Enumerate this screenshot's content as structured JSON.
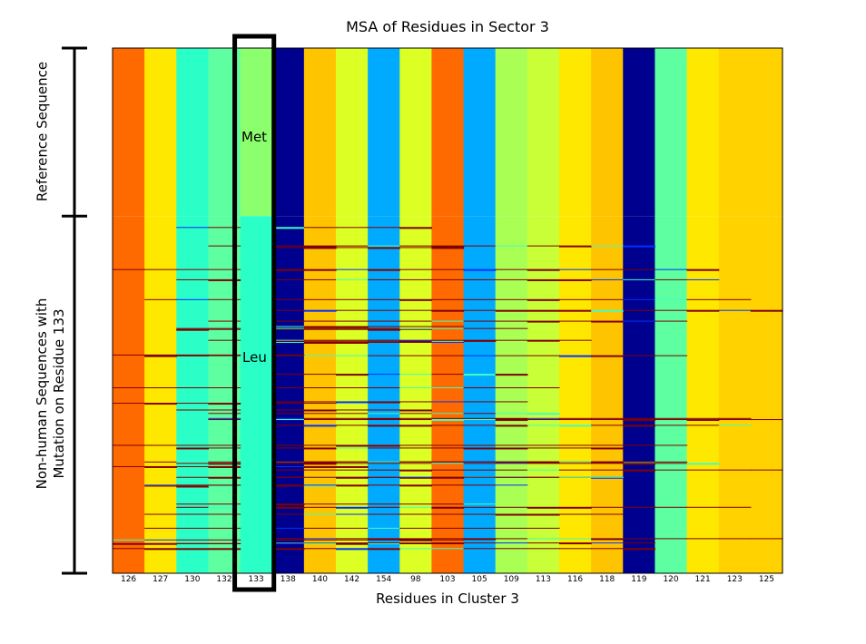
{
  "chart_data": {
    "type": "heatmap",
    "title": "MSA of Residues in Sector 3",
    "xlabel": "Residues in Cluster 3",
    "ylabel_groups": [
      {
        "label": "Reference Sequence",
        "rows_fraction": [
          0,
          0.32
        ]
      },
      {
        "label": "Non-human Sequences with Mutation on Residue 133",
        "label_lines": [
          "Non-human Sequences with",
          "Mutation on Residue 133"
        ],
        "rows_fraction": [
          0.32,
          1.0
        ]
      }
    ],
    "columns": [
      "126",
      "127",
      "130",
      "132",
      "133",
      "138",
      "140",
      "142",
      "154",
      "98",
      "103",
      "105",
      "109",
      "113",
      "116",
      "118",
      "119",
      "120",
      "121",
      "123",
      "125"
    ],
    "reference_colors": [
      "#FF6A00",
      "#FFE800",
      "#2BFFC8",
      "#5DFFA0",
      "#8CFF6F",
      "#00008F",
      "#FFC400",
      "#DCFF24",
      "#00AAFF",
      "#DCFF24",
      "#FF6A00",
      "#00AAFF",
      "#AAFF55",
      "#C8FF37",
      "#FFE800",
      "#FFC400",
      "#00008F",
      "#5DFFA0",
      "#FFE800",
      "#FFD200",
      "#FFD200"
    ],
    "lower_colors": [
      "#FF6A00",
      "#FFE800",
      "#2BFFC8",
      "#5DFFA0",
      "#2BFFC8",
      "#00008F",
      "#FFC400",
      "#DCFF24",
      "#00AAFF",
      "#DCFF24",
      "#FF6A00",
      "#00AAFF",
      "#AAFF55",
      "#C8FF37",
      "#FFE800",
      "#FFC400",
      "#00008F",
      "#5DFFA0",
      "#FFE800",
      "#FFD200",
      "#FFD200"
    ],
    "highlighted_column": "133",
    "annotations": [
      {
        "text": "Met",
        "column": "133",
        "group": "reference"
      },
      {
        "text": "Leu",
        "column": "133",
        "group": "non-human"
      }
    ],
    "colormap": "jet",
    "grid": false
  }
}
